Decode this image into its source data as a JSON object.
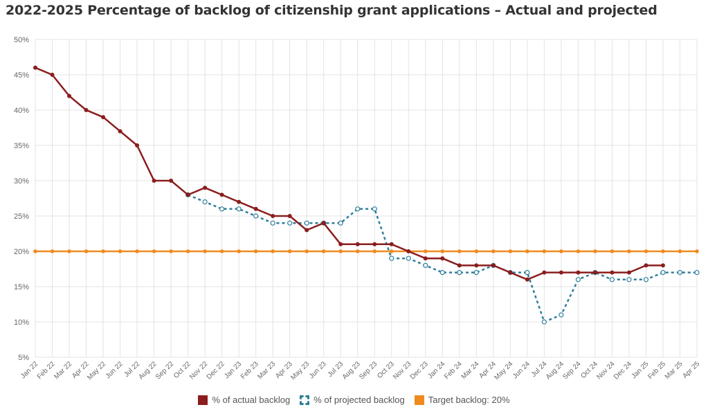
{
  "title": "2022-2025 Percentage of backlog of citizenship grant applications – Actual and projected",
  "legend": {
    "actual": "% of actual backlog",
    "projected": "% of projected backlog",
    "target": "Target backlog: 20%"
  },
  "colors": {
    "actual": "#8b1d1d",
    "projected": "#2e7d9a",
    "target": "#f08a1e",
    "grid": "#e3e3e3",
    "axis_text": "#666666"
  },
  "chart_data": {
    "type": "line",
    "title": "2022-2025 Percentage of backlog of citizenship grant applications – Actual and projected",
    "categories": [
      "Jan 22",
      "Feb 22",
      "Mar 22",
      "Apr 22",
      "May 22",
      "Jun 22",
      "Jul 22",
      "Aug 22",
      "Sep 22",
      "Oct 22",
      "Nov 22",
      "Dec 22",
      "Jan 23",
      "Feb 23",
      "Mar 23",
      "Apr 23",
      "May 23",
      "Jun 23",
      "Jul 23",
      "Aug 23",
      "Sep 23",
      "Oct 23",
      "Nov 23",
      "Dec 23",
      "Jan 24",
      "Feb 24",
      "Mar 24",
      "Apr 24",
      "May 24",
      "Jun 24",
      "Jul 24",
      "Aug 24",
      "Sep 24",
      "Oct 24",
      "Nov 24",
      "Dec 24",
      "Jan 25",
      "Feb 25",
      "Mar 25",
      "Apr 25"
    ],
    "y_ticks": [
      "5%",
      "10%",
      "15%",
      "20%",
      "25%",
      "30%",
      "35%",
      "40%",
      "45%",
      "50%"
    ],
    "ylim": [
      5,
      50
    ],
    "grid": true,
    "legend_position": "bottom-center",
    "series": [
      {
        "key": "actual",
        "name": "% of actual backlog",
        "style": "solid",
        "values": [
          46,
          45,
          42,
          40,
          39,
          37,
          35,
          30,
          30,
          28,
          29,
          28,
          27,
          26,
          25,
          25,
          23,
          24,
          21,
          21,
          21,
          21,
          20,
          19,
          19,
          18,
          18,
          18,
          17,
          16,
          17,
          17,
          17,
          17,
          17,
          17,
          18,
          18,
          null,
          null
        ]
      },
      {
        "key": "projected",
        "name": "% of projected backlog",
        "style": "dashed",
        "values": [
          null,
          null,
          null,
          null,
          null,
          null,
          null,
          null,
          null,
          28,
          27,
          26,
          26,
          25,
          24,
          24,
          24,
          24,
          24,
          26,
          26,
          19,
          19,
          18,
          17,
          17,
          17,
          18,
          17,
          17,
          10,
          11,
          16,
          17,
          16,
          16,
          16,
          17,
          17,
          17
        ]
      },
      {
        "key": "target",
        "name": "Target backlog: 20%",
        "style": "solid",
        "values": [
          20,
          20,
          20,
          20,
          20,
          20,
          20,
          20,
          20,
          20,
          20,
          20,
          20,
          20,
          20,
          20,
          20,
          20,
          20,
          20,
          20,
          20,
          20,
          20,
          20,
          20,
          20,
          20,
          20,
          20,
          20,
          20,
          20,
          20,
          20,
          20,
          20,
          20,
          20,
          20
        ]
      }
    ]
  }
}
